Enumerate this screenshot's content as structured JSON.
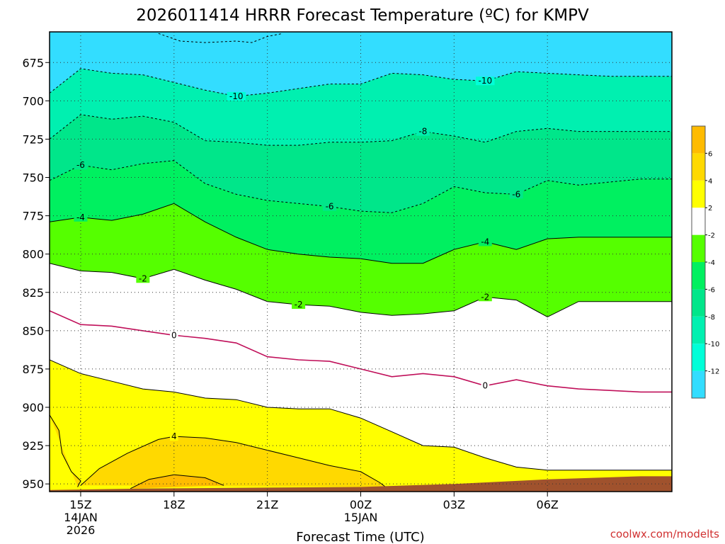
{
  "chart_data": {
    "type": "contour",
    "title": "2026011414 HRRR Forecast Temperature (ºC) for KMPV",
    "xlabel": "Forecast Time (UTC)",
    "ylabel": "",
    "credit": "coolwx.com/modelts",
    "x_hours": [
      -1,
      19
    ],
    "y_pressure": [
      955,
      655
    ],
    "x_ticks": [
      {
        "h": 0,
        "lines": [
          "15Z",
          "14JAN",
          "2026"
        ]
      },
      {
        "h": 3,
        "lines": [
          "18Z"
        ]
      },
      {
        "h": 6,
        "lines": [
          "21Z"
        ]
      },
      {
        "h": 9,
        "lines": [
          "00Z",
          "15JAN"
        ]
      },
      {
        "h": 12,
        "lines": [
          "03Z"
        ]
      },
      {
        "h": 15,
        "lines": [
          "06Z"
        ]
      }
    ],
    "y_ticks": [
      675,
      700,
      725,
      750,
      775,
      800,
      825,
      850,
      875,
      900,
      925,
      950
    ],
    "contours": [
      {
        "level": 0,
        "style": "freezing",
        "labels": [
          {
            "h": 3,
            "text": "0"
          },
          {
            "h": 13,
            "text": "0"
          }
        ],
        "points": [
          [
            -1,
            837
          ],
          [
            0,
            846
          ],
          [
            1,
            847
          ],
          [
            2,
            850
          ],
          [
            3,
            853
          ],
          [
            4,
            855
          ],
          [
            5,
            858
          ],
          [
            6,
            867
          ],
          [
            7,
            869
          ],
          [
            8,
            870
          ],
          [
            9,
            875
          ],
          [
            10,
            880
          ],
          [
            11,
            878
          ],
          [
            12,
            880
          ],
          [
            13,
            886
          ],
          [
            14,
            882
          ],
          [
            15,
            886
          ],
          [
            16,
            888
          ],
          [
            17,
            889
          ],
          [
            18,
            890
          ]
        ]
      },
      {
        "level": 2,
        "style": "solid",
        "labels": [],
        "points": [
          [
            -1,
            869
          ],
          [
            0,
            878
          ],
          [
            1,
            883
          ],
          [
            2,
            888
          ],
          [
            3,
            890
          ],
          [
            4,
            894
          ],
          [
            5,
            895
          ],
          [
            6,
            900
          ],
          [
            7,
            901
          ],
          [
            8,
            901
          ],
          [
            9,
            907
          ],
          [
            10,
            916
          ],
          [
            11,
            925
          ],
          [
            12,
            926
          ],
          [
            13,
            933
          ],
          [
            14,
            939
          ],
          [
            15,
            941
          ],
          [
            16,
            941
          ],
          [
            17,
            941
          ],
          [
            18,
            941
          ]
        ]
      },
      {
        "level": 4,
        "style": "solid",
        "labels": [
          {
            "h": 3,
            "text": "4"
          }
        ],
        "points": [
          [
            0,
            951
          ],
          [
            0.6,
            940
          ],
          [
            1.5,
            930
          ],
          [
            2.5,
            921
          ],
          [
            3,
            919
          ],
          [
            4,
            920
          ],
          [
            5,
            923
          ],
          [
            6,
            928
          ],
          [
            7,
            933
          ],
          [
            8,
            938
          ],
          [
            9,
            942
          ],
          [
            9.6,
            949
          ],
          [
            9.8,
            952
          ]
        ]
      },
      {
        "level": 6,
        "style": "solid",
        "labels": [],
        "points": [
          [
            1.6,
            953
          ],
          [
            2.2,
            947
          ],
          [
            3,
            944
          ],
          [
            4,
            946
          ],
          [
            4.6,
            951
          ]
        ]
      },
      {
        "level": 4,
        "style": "solid",
        "labels": [],
        "points": [
          [
            -1,
            905
          ],
          [
            -0.7,
            915
          ],
          [
            -0.6,
            930
          ],
          [
            -0.3,
            942
          ],
          [
            0,
            948
          ],
          [
            -0.1,
            952
          ]
        ]
      },
      {
        "level": -2,
        "style": "solid",
        "labels": [
          {
            "h": 2,
            "text": "-2"
          },
          {
            "h": 7,
            "text": "-2"
          },
          {
            "h": 13,
            "text": "-2"
          }
        ],
        "points": [
          [
            -1,
            806
          ],
          [
            0,
            811
          ],
          [
            1,
            812
          ],
          [
            2,
            816
          ],
          [
            3,
            810
          ],
          [
            4,
            817
          ],
          [
            5,
            823
          ],
          [
            6,
            831
          ],
          [
            7,
            833
          ],
          [
            8,
            834
          ],
          [
            9,
            838
          ],
          [
            10,
            840
          ],
          [
            11,
            839
          ],
          [
            12,
            837
          ],
          [
            13,
            828
          ],
          [
            14,
            830
          ],
          [
            15,
            841
          ],
          [
            16,
            831
          ],
          [
            17,
            831
          ],
          [
            18,
            831
          ]
        ]
      },
      {
        "level": -4,
        "style": "solid",
        "labels": [
          {
            "h": 0,
            "text": "-4"
          },
          {
            "h": 13,
            "text": "-4"
          }
        ],
        "points": [
          [
            -1,
            779
          ],
          [
            0,
            776
          ],
          [
            1,
            778
          ],
          [
            2,
            774
          ],
          [
            3,
            767
          ],
          [
            4,
            779
          ],
          [
            5,
            789
          ],
          [
            6,
            797
          ],
          [
            7,
            800
          ],
          [
            8,
            802
          ],
          [
            9,
            803
          ],
          [
            10,
            806
          ],
          [
            11,
            806
          ],
          [
            12,
            797
          ],
          [
            13,
            792
          ],
          [
            14,
            797
          ],
          [
            15,
            790
          ],
          [
            16,
            789
          ],
          [
            17,
            789
          ],
          [
            18,
            789
          ]
        ]
      },
      {
        "level": -6,
        "style": "dashed",
        "labels": [
          {
            "h": 0,
            "text": "-6"
          },
          {
            "h": 8,
            "text": "-6"
          },
          {
            "h": 14,
            "text": "-6"
          }
        ],
        "points": [
          [
            -1,
            752
          ],
          [
            0,
            742
          ],
          [
            1,
            745
          ],
          [
            2,
            741
          ],
          [
            3,
            739
          ],
          [
            4,
            754
          ],
          [
            5,
            761
          ],
          [
            6,
            765
          ],
          [
            7,
            767
          ],
          [
            8,
            769
          ],
          [
            9,
            772
          ],
          [
            10,
            773
          ],
          [
            11,
            767
          ],
          [
            12,
            756
          ],
          [
            13,
            760
          ],
          [
            14,
            761
          ],
          [
            15,
            752
          ],
          [
            16,
            755
          ],
          [
            17,
            753
          ],
          [
            18,
            751
          ]
        ]
      },
      {
        "level": -8,
        "style": "dashed",
        "labels": [
          {
            "h": 11,
            "text": "-8"
          }
        ],
        "points": [
          [
            -1,
            725
          ],
          [
            0,
            709
          ],
          [
            1,
            712
          ],
          [
            2,
            710
          ],
          [
            3,
            714
          ],
          [
            4,
            726
          ],
          [
            5,
            727
          ],
          [
            6,
            729
          ],
          [
            7,
            729
          ],
          [
            8,
            727
          ],
          [
            9,
            727
          ],
          [
            10,
            726
          ],
          [
            11,
            720
          ],
          [
            12,
            723
          ],
          [
            13,
            727
          ],
          [
            14,
            720
          ],
          [
            15,
            718
          ],
          [
            16,
            720
          ],
          [
            17,
            720
          ],
          [
            18,
            720
          ]
        ]
      },
      {
        "level": -10,
        "style": "dashed",
        "labels": [
          {
            "h": 5,
            "text": "-10"
          },
          {
            "h": 13,
            "text": "-10"
          }
        ],
        "points": [
          [
            -1,
            695
          ],
          [
            0,
            679
          ],
          [
            1,
            682
          ],
          [
            2,
            683
          ],
          [
            3,
            688
          ],
          [
            4,
            693
          ],
          [
            5,
            697
          ],
          [
            6,
            695
          ],
          [
            7,
            692
          ],
          [
            8,
            689
          ],
          [
            9,
            689
          ],
          [
            10,
            682
          ],
          [
            11,
            683
          ],
          [
            12,
            686
          ],
          [
            13,
            687
          ],
          [
            14,
            681
          ],
          [
            15,
            682
          ],
          [
            16,
            683
          ],
          [
            17,
            684
          ],
          [
            18,
            684
          ]
        ]
      },
      {
        "level": -12,
        "style": "dashed",
        "labels": [],
        "points": [
          [
            2.5,
            656
          ],
          [
            3.2,
            661
          ],
          [
            4,
            662
          ],
          [
            5,
            661
          ],
          [
            5.5,
            662
          ],
          [
            6,
            658
          ],
          [
            6.5,
            656
          ]
        ]
      }
    ],
    "ground": [
      [
        -1,
        954
      ],
      [
        2,
        953
      ],
      [
        9,
        952
      ],
      [
        12,
        950
      ],
      [
        15,
        947
      ],
      [
        18,
        945
      ]
    ],
    "colorbar": {
      "levels": [
        -14,
        -12,
        -10,
        -8,
        -6,
        -4,
        -2,
        2,
        4,
        6,
        8
      ],
      "colors": [
        "#33ddff",
        "#00ffd8",
        "#00f0b0",
        "#00e68a",
        "#00f060",
        "#55ff00",
        "#ffffff",
        "#ffff00",
        "#ffd900",
        "#ffbb00"
      ],
      "tick_labels": [
        "-12",
        "-10",
        "-8",
        "-6",
        "-4",
        "-2",
        "2",
        "4",
        "6"
      ]
    },
    "fill_bands": [
      {
        "range": [
          -14,
          -12
        ],
        "color": "#33ddff"
      },
      {
        "range": [
          -12,
          -10
        ],
        "color": "#00ffd8"
      },
      {
        "range": [
          -10,
          -8
        ],
        "color": "#00f0b0"
      },
      {
        "range": [
          -8,
          -6
        ],
        "color": "#00e68a"
      },
      {
        "range": [
          -6,
          -4
        ],
        "color": "#00f060"
      },
      {
        "range": [
          -4,
          -2
        ],
        "color": "#55ff00"
      },
      {
        "range": [
          -2,
          2
        ],
        "color": "#ffffff"
      },
      {
        "range": [
          2,
          4
        ],
        "color": "#ffff00"
      },
      {
        "range": [
          4,
          6
        ],
        "color": "#ffd900"
      },
      {
        "range": [
          6,
          8
        ],
        "color": "#ffbb00"
      }
    ],
    "colors": {
      "ground": "#a0522d",
      "freezing_line": "#c0105a",
      "credit": "#d03030"
    }
  }
}
